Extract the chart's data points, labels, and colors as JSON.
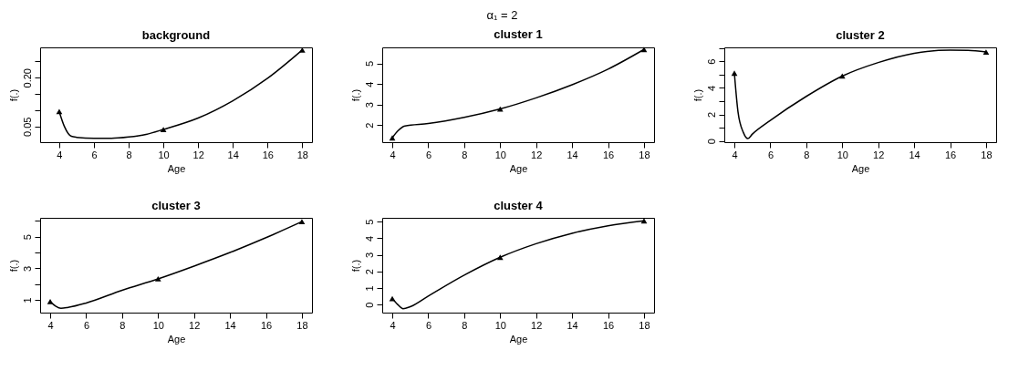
{
  "chart_data": [
    {
      "type": "line",
      "title": "background",
      "xlabel": "Age",
      "ylabel": "f(.)",
      "annotations": [
        "α₁ = 2"
      ],
      "xlim": [
        2.9,
        18.56
      ],
      "ylim": [
        0.002,
        0.293
      ],
      "xticks": [
        4,
        6,
        8,
        10,
        12,
        14,
        16,
        18
      ],
      "yticks": [
        {
          "value": 0.05,
          "label": "0.05"
        },
        {
          "value": 0.1,
          "label": null
        },
        {
          "value": 0.15,
          "label": null
        },
        {
          "value": 0.2,
          "label": "0.20"
        },
        {
          "value": 0.25,
          "label": null
        }
      ],
      "grid": false,
      "series": [
        {
          "type": "line",
          "color": "#000000",
          "line_style": "solid",
          "x": [
            4,
            4.3,
            4.7,
            5,
            6,
            6.5,
            7,
            8,
            9,
            10,
            12,
            14,
            16,
            18
          ],
          "values": [
            0.096,
            0.05,
            0.02,
            0.017,
            0.014,
            0.014,
            0.014,
            0.018,
            0.026,
            0.041,
            0.076,
            0.129,
            0.198,
            0.285
          ]
        },
        {
          "type": "scatter",
          "color": "#000000",
          "marker": "triangle",
          "x": [
            4,
            10,
            18
          ],
          "values": [
            0.096,
            0.041,
            0.285
          ]
        }
      ]
    },
    {
      "type": "line",
      "title": "cluster 1",
      "xlabel": "Age",
      "ylabel": "f(.)",
      "xlim": [
        3.44,
        18.56
      ],
      "ylim": [
        1.16,
        5.78
      ],
      "xticks": [
        4,
        6,
        8,
        10,
        12,
        14,
        16,
        18
      ],
      "yticks": [
        2,
        3,
        4,
        5
      ],
      "grid": false,
      "series": [
        {
          "type": "line",
          "color": "#000000",
          "line_style": "solid",
          "x": [
            4,
            4.3,
            4.7,
            6,
            8,
            10,
            12,
            14,
            16,
            18
          ],
          "values": [
            1.37,
            1.7,
            1.95,
            2.07,
            2.37,
            2.78,
            3.32,
            3.96,
            4.72,
            5.68
          ]
        },
        {
          "type": "scatter",
          "color": "#000000",
          "marker": "triangle",
          "x": [
            4,
            10,
            18
          ],
          "values": [
            1.37,
            2.78,
            5.68
          ]
        }
      ]
    },
    {
      "type": "line",
      "title": "cluster 2",
      "xlabel": "Age",
      "ylabel": "f(.)",
      "xlim": [
        3.44,
        18.56
      ],
      "ylim": [
        -0.09,
        7.05
      ],
      "xticks": [
        4,
        6,
        8,
        10,
        12,
        14,
        16,
        18
      ],
      "yticks": [
        0,
        {
          "value": 1,
          "label": null
        },
        2,
        {
          "value": 3,
          "label": null
        },
        4,
        {
          "value": 5,
          "label": null
        },
        6,
        {
          "value": 7,
          "label": null
        }
      ],
      "grid": false,
      "series": [
        {
          "type": "line",
          "color": "#000000",
          "line_style": "solid",
          "x": [
            4,
            4.2,
            4.5,
            4.75,
            5,
            6,
            8,
            10,
            12,
            14,
            16,
            17,
            18
          ],
          "values": [
            5.11,
            2.2,
            0.64,
            0.18,
            0.52,
            1.55,
            3.36,
            4.89,
            5.91,
            6.61,
            6.84,
            6.82,
            6.7
          ]
        },
        {
          "type": "scatter",
          "color": "#000000",
          "marker": "triangle",
          "x": [
            4,
            10,
            18
          ],
          "values": [
            5.11,
            4.89,
            6.7
          ]
        }
      ]
    },
    {
      "type": "line",
      "title": "cluster 3",
      "xlabel": "Age",
      "ylabel": "f(.)",
      "xlim": [
        3.44,
        18.56
      ],
      "ylim": [
        0.19,
        6.2
      ],
      "xticks": [
        4,
        6,
        8,
        10,
        12,
        14,
        16,
        18
      ],
      "yticks": [
        1,
        {
          "value": 2,
          "label": null
        },
        3,
        {
          "value": 4,
          "label": null
        },
        5,
        {
          "value": 6,
          "label": null
        }
      ],
      "grid": false,
      "series": [
        {
          "type": "line",
          "color": "#000000",
          "line_style": "solid",
          "x": [
            4,
            4.3,
            4.6,
            5,
            6,
            8,
            10,
            12,
            14,
            16,
            18
          ],
          "values": [
            0.89,
            0.6,
            0.46,
            0.52,
            0.8,
            1.61,
            2.33,
            3.14,
            4.0,
            4.94,
            5.96
          ]
        },
        {
          "type": "scatter",
          "color": "#000000",
          "marker": "triangle",
          "x": [
            4,
            10,
            18
          ],
          "values": [
            0.89,
            2.33,
            5.96
          ]
        }
      ]
    },
    {
      "type": "line",
      "title": "cluster 4",
      "xlabel": "Age",
      "ylabel": "f(.)",
      "xlim": [
        3.44,
        18.56
      ],
      "ylim": [
        -0.49,
        5.23
      ],
      "xticks": [
        4,
        6,
        8,
        10,
        12,
        14,
        16,
        18
      ],
      "yticks": [
        0,
        1,
        2,
        3,
        4,
        5
      ],
      "grid": false,
      "series": [
        {
          "type": "line",
          "color": "#000000",
          "line_style": "solid",
          "x": [
            4,
            4.3,
            4.6,
            5,
            6,
            8,
            10,
            12,
            14,
            16,
            18
          ],
          "values": [
            0.36,
            0.0,
            -0.25,
            -0.13,
            0.51,
            1.77,
            2.85,
            3.67,
            4.3,
            4.75,
            5.05
          ]
        },
        {
          "type": "scatter",
          "color": "#000000",
          "marker": "triangle",
          "x": [
            4,
            10,
            18
          ],
          "values": [
            0.36,
            2.85,
            5.05
          ]
        }
      ]
    }
  ]
}
